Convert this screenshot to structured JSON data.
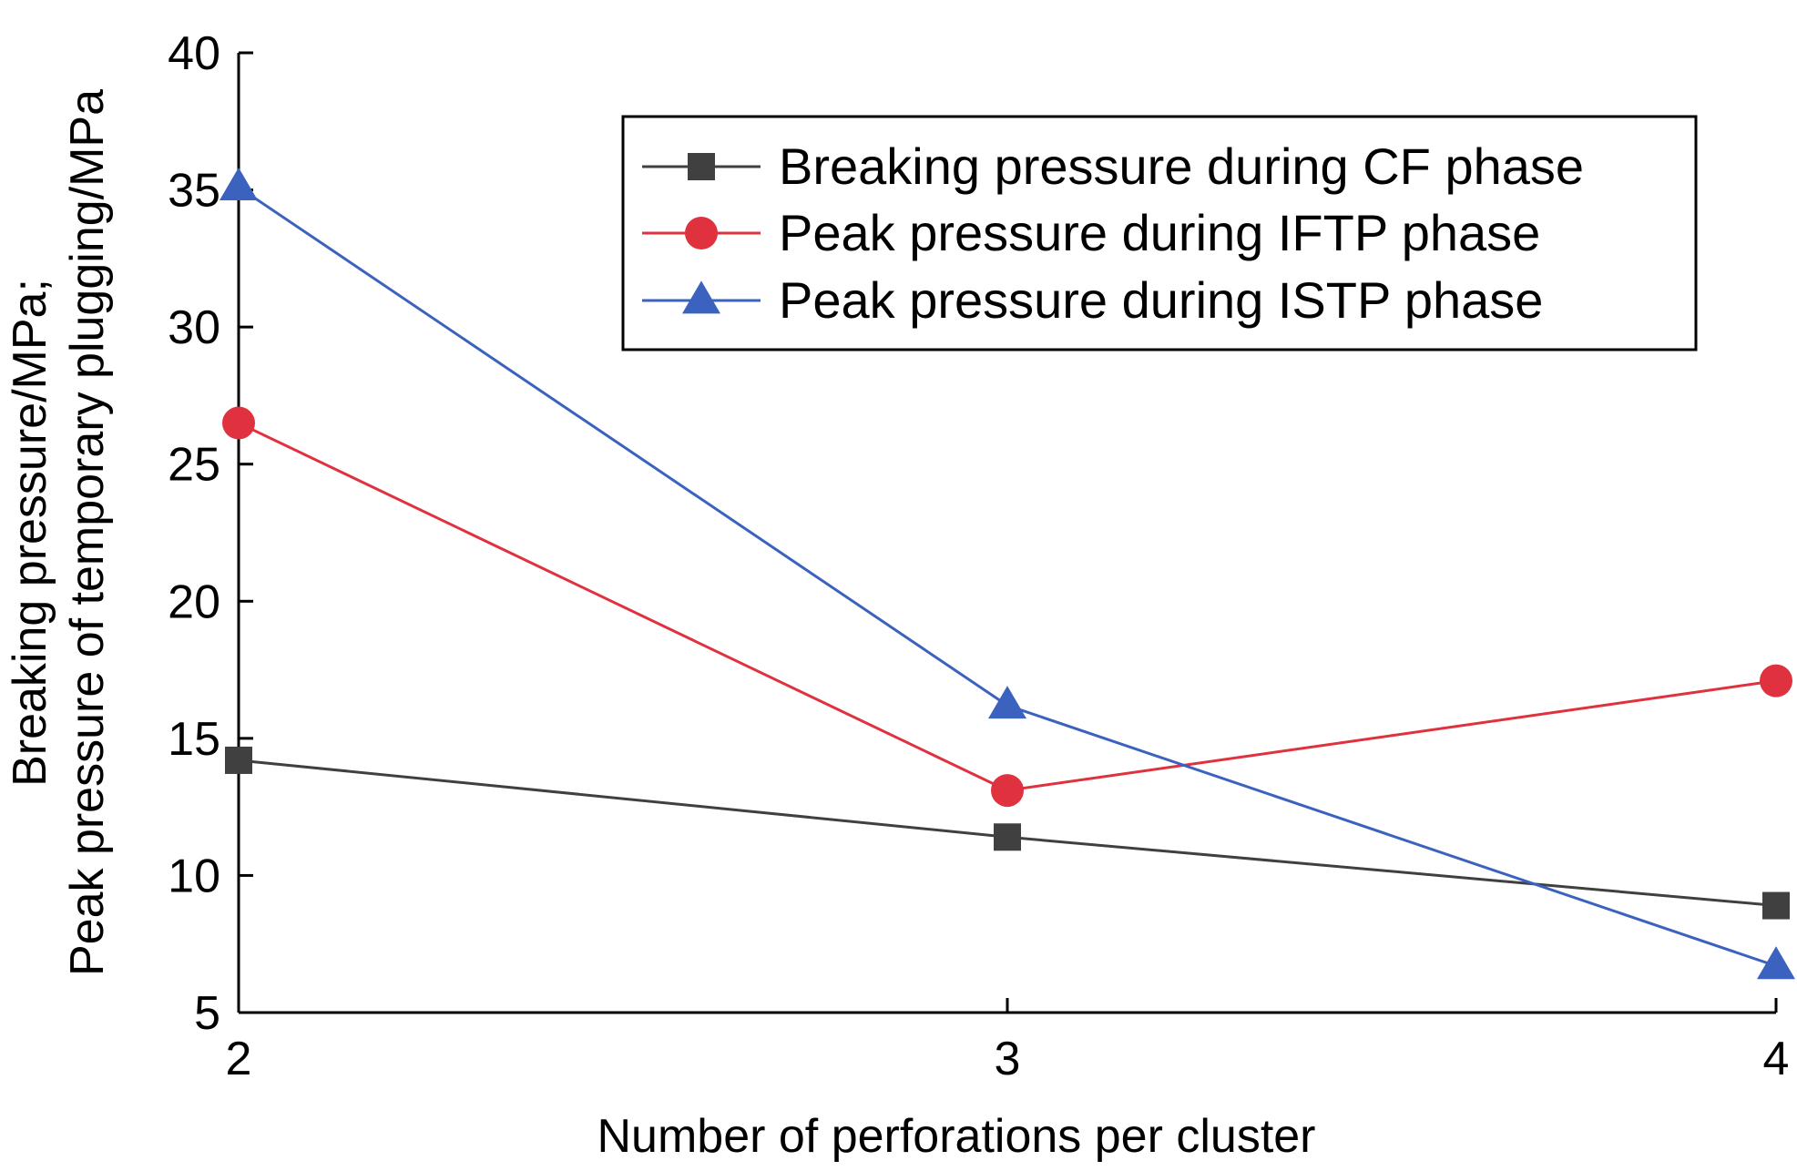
{
  "chart_data": {
    "type": "line",
    "title": "",
    "xlabel": "Number of perforations per cluster",
    "ylabel_lines": [
      "Breaking pressure/MPa;",
      "Peak pressure of temporary plugging/MPa"
    ],
    "x": [
      2,
      3,
      4
    ],
    "xlim": [
      2,
      4
    ],
    "ylim": [
      5,
      40
    ],
    "xticks": [
      "2",
      "3",
      "4"
    ],
    "yticks": [
      "5",
      "10",
      "15",
      "20",
      "25",
      "30",
      "35",
      "40"
    ],
    "grid": false,
    "legend_position": "top-right",
    "series": [
      {
        "name": "Breaking pressure during CF phase",
        "values": [
          14.2,
          11.4,
          8.9
        ],
        "color": "#404040",
        "marker": "square"
      },
      {
        "name": "Peak pressure during IFTP phase",
        "values": [
          26.5,
          13.1,
          17.1
        ],
        "color": "#e0313f",
        "marker": "circle"
      },
      {
        "name": "Peak pressure during ISTP phase",
        "values": [
          35.1,
          16.2,
          6.7
        ],
        "color": "#3a62be",
        "marker": "triangle"
      }
    ]
  }
}
